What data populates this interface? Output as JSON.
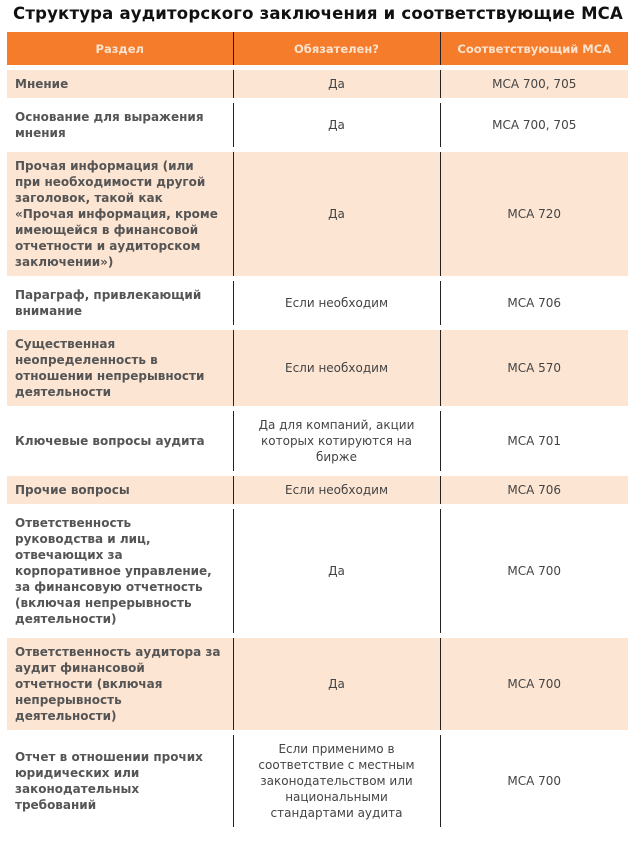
{
  "title": "Структура аудиторского заключения и соответствующие МСА",
  "headers": [
    "Раздел",
    "Обязателен?",
    "Соответствующий МСА"
  ],
  "rows": [
    {
      "section": "Мнение",
      "required": "Да",
      "isa": "МСА 700, 705"
    },
    {
      "section": "Основание для выражения мнения",
      "required": "Да",
      "isa": "МСА 700, 705"
    },
    {
      "section": "Прочая информация (или при необходимости другой заголовок, такой как «Прочая информация, кроме имеющейся в финансовой отчетности и аудиторском заключении»)",
      "required": "Да",
      "isa": "МСА 720"
    },
    {
      "section": "Параграф, привлекающий внимание",
      "required": "Если необходим",
      "isa": "МСА 706"
    },
    {
      "section": "Существенная неопределенность в отношении непрерывности деятельности",
      "required": "Если необходим",
      "isa": "МСА 570"
    },
    {
      "section": "Ключевые вопросы аудита",
      "required": "Да для компаний, акции которых котируются на бирже",
      "isa": "МСА 701"
    },
    {
      "section": "Прочие вопросы",
      "required": "Если необходим",
      "isa": "МСА 706"
    },
    {
      "section": "Ответственность руководства и лиц, отвечающих за корпоративное управление, за финансовую отчетность (включая непрерывность деятельности)",
      "required": "Да",
      "isa": "МСА 700"
    },
    {
      "section": "Ответственность аудитора за аудит финансовой отчетности (включая непрерывность деятельности)",
      "required": "Да",
      "isa": "МСА 700"
    },
    {
      "section": "Отчет в отношении прочих юридических или законодательных требований",
      "required": "Если применимо в соответствие с местным законодательством или национальными стандартами аудита",
      "isa": "МСА 700"
    }
  ],
  "colors": {
    "header": "#f47c2a",
    "stripe": "#fde5d3"
  }
}
